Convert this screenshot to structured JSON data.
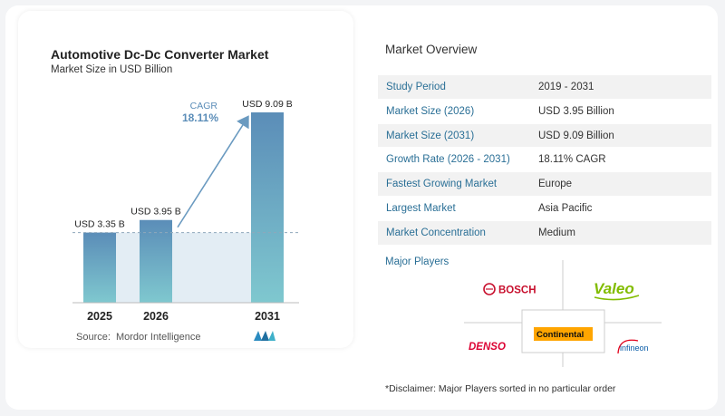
{
  "chart_data": {
    "type": "bar",
    "title": "Automotive Dc-Dc Converter Market",
    "subtitle": "Market Size in USD Billion",
    "categories": [
      "2025",
      "2026",
      "2031"
    ],
    "values": [
      3.35,
      3.95,
      9.09
    ],
    "data_labels": [
      "USD 3.35 B",
      "USD 3.95 B",
      "USD 9.09 B"
    ],
    "cagr_label": "CAGR",
    "cagr_value": "18.11%",
    "colors": {
      "bar_dark": "#5b8db8",
      "bar_light": "#7fc8cf",
      "shade": "#e3edf4",
      "arrow": "#6a9ac0"
    }
  },
  "source": {
    "label": "Source:",
    "name": "Mordor Intelligence"
  },
  "overview": {
    "title": "Market Overview",
    "rows": [
      {
        "label": "Study Period",
        "value": "2019 - 2031"
      },
      {
        "label": "Market Size (2026)",
        "value": "USD 3.95 Billion"
      },
      {
        "label": "Market Size (2031)",
        "value": "USD 9.09 Billion"
      },
      {
        "label": "Growth Rate (2026 - 2031)",
        "value": "18.11% CAGR"
      },
      {
        "label": "Fastest Growing Market",
        "value": "Europe"
      },
      {
        "label": "Largest Market",
        "value": "Asia Pacific"
      },
      {
        "label": "Market Concentration",
        "value": "Medium"
      }
    ]
  },
  "major_players": {
    "title": "Major Players",
    "logos": [
      "BOSCH",
      "Valeo",
      "Continental",
      "DENSO",
      "infineon"
    ]
  },
  "disclaimer": "*Disclaimer: Major Players sorted in no particular order"
}
